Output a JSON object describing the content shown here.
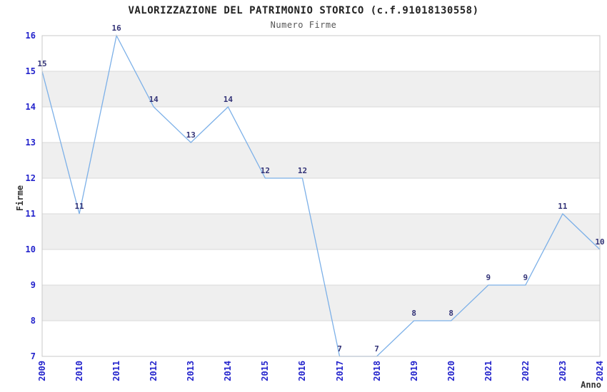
{
  "chart_data": {
    "type": "line",
    "title": "VALORIZZAZIONE DEL PATRIMONIO STORICO (c.f.91018130558)",
    "subtitle": "Numero Firme",
    "xlabel": "Anno",
    "ylabel": "Firme",
    "x": [
      2009,
      2010,
      2011,
      2012,
      2013,
      2014,
      2015,
      2016,
      2017,
      2018,
      2019,
      2020,
      2021,
      2022,
      2023,
      2024
    ],
    "series": [
      {
        "name": "Numero Firme",
        "values": [
          15,
          11,
          16,
          14,
          13,
          14,
          12,
          12,
          7,
          7,
          8,
          8,
          9,
          9,
          11,
          10
        ]
      }
    ],
    "point_labels": [
      15,
      11,
      16,
      14,
      13,
      14,
      12,
      12,
      7,
      7,
      8,
      8,
      9,
      9,
      11,
      10
    ],
    "ylim": [
      7,
      16
    ],
    "yticks": [
      7,
      8,
      9,
      10,
      11,
      12,
      13,
      14,
      15,
      16
    ],
    "grid": true,
    "legend": false,
    "gray_bands": [
      [
        8,
        9
      ],
      [
        10,
        11
      ],
      [
        12,
        13
      ],
      [
        14,
        15
      ]
    ],
    "colors": {
      "line": "#7CB0E8",
      "band": "#EFEFEF",
      "grid": "#D9D9D9",
      "border": "#C9C9C9",
      "tick_label": "#2424CC",
      "point_label": "#333377",
      "title": "#222222",
      "subtitle": "#555555",
      "axis_title": "#333333"
    }
  }
}
